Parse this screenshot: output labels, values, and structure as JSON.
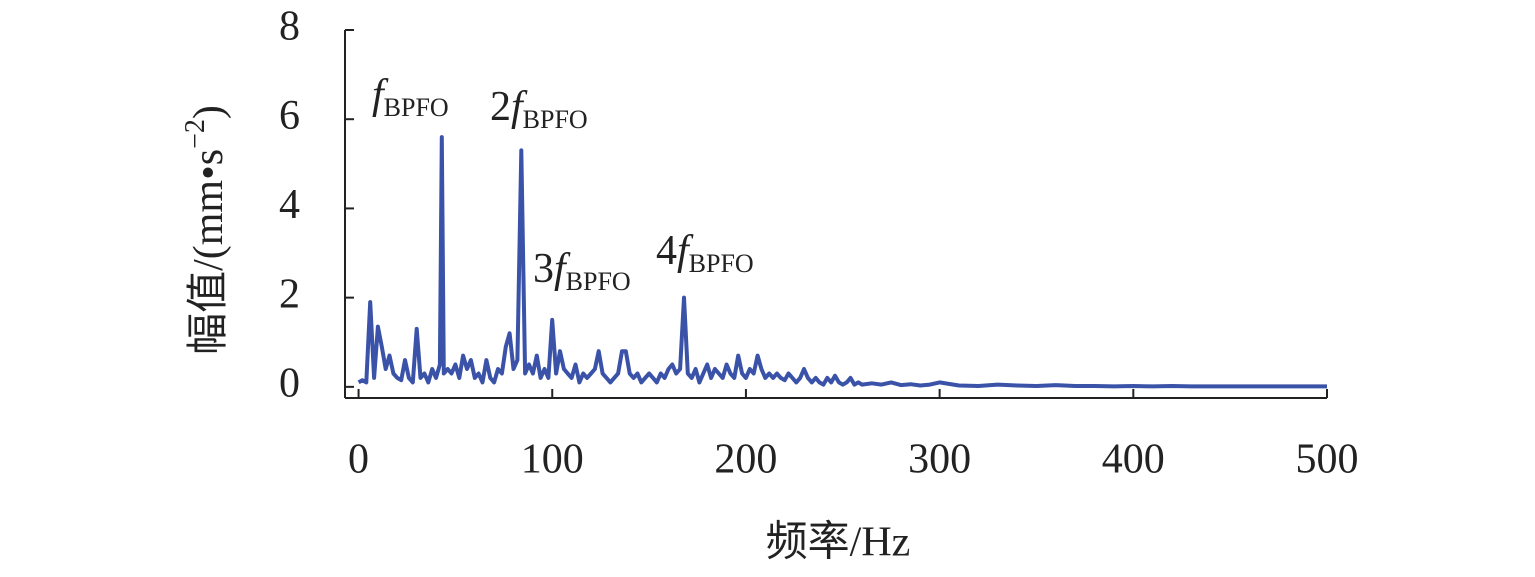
{
  "chart_data": {
    "type": "line",
    "x_label": "频率/Hz",
    "y_label_parts": [
      "幅值/(mm•s",
      "−2",
      ")"
    ],
    "x": [
      0,
      2,
      4,
      6,
      8,
      10,
      12,
      14,
      16,
      18,
      20,
      22,
      24,
      26,
      28,
      30,
      32,
      34,
      36,
      38,
      40,
      42,
      43,
      44,
      46,
      48,
      50,
      52,
      54,
      56,
      58,
      60,
      62,
      64,
      66,
      68,
      70,
      72,
      74,
      76,
      78,
      80,
      82,
      84,
      86,
      88,
      90,
      92,
      94,
      96,
      98,
      100,
      102,
      104,
      106,
      108,
      110,
      112,
      114,
      116,
      118,
      120,
      122,
      124,
      126,
      128,
      130,
      132,
      134,
      136,
      138,
      140,
      142,
      144,
      146,
      148,
      150,
      152,
      154,
      156,
      158,
      160,
      162,
      164,
      166,
      168,
      170,
      172,
      174,
      176,
      178,
      180,
      182,
      184,
      186,
      188,
      190,
      192,
      194,
      196,
      198,
      200,
      202,
      204,
      206,
      208,
      210,
      212,
      214,
      216,
      218,
      220,
      222,
      224,
      226,
      228,
      230,
      232,
      234,
      236,
      238,
      240,
      242,
      244,
      246,
      248,
      250,
      252,
      254,
      256,
      258,
      260,
      265,
      270,
      275,
      280,
      285,
      290,
      295,
      300,
      310,
      320,
      330,
      340,
      350,
      360,
      370,
      380,
      390,
      400,
      410,
      420,
      430,
      440,
      450,
      460,
      470,
      480,
      490,
      500
    ],
    "series": [
      {
        "color": "#3a52a8",
        "values": [
          0.1,
          0.15,
          0.1,
          1.9,
          0.2,
          1.35,
          0.9,
          0.4,
          0.7,
          0.3,
          0.2,
          0.15,
          0.6,
          0.2,
          0.1,
          1.3,
          0.2,
          0.3,
          0.1,
          0.4,
          0.2,
          0.5,
          5.6,
          0.3,
          0.4,
          0.3,
          0.5,
          0.2,
          0.7,
          0.4,
          0.6,
          0.2,
          0.3,
          0.1,
          0.6,
          0.2,
          0.1,
          0.4,
          0.3,
          0.9,
          1.2,
          0.4,
          0.6,
          5.3,
          0.3,
          0.5,
          0.3,
          0.7,
          0.2,
          0.4,
          0.2,
          1.5,
          0.3,
          0.8,
          0.4,
          0.3,
          0.2,
          0.5,
          0.1,
          0.3,
          0.2,
          0.3,
          0.4,
          0.8,
          0.3,
          0.2,
          0.1,
          0.2,
          0.3,
          0.8,
          0.8,
          0.3,
          0.2,
          0.3,
          0.1,
          0.2,
          0.3,
          0.2,
          0.1,
          0.3,
          0.2,
          0.4,
          0.5,
          0.3,
          0.4,
          2.0,
          0.3,
          0.2,
          0.4,
          0.1,
          0.3,
          0.5,
          0.2,
          0.4,
          0.3,
          0.2,
          0.5,
          0.3,
          0.2,
          0.7,
          0.3,
          0.2,
          0.4,
          0.3,
          0.7,
          0.4,
          0.2,
          0.3,
          0.2,
          0.3,
          0.2,
          0.15,
          0.3,
          0.2,
          0.1,
          0.2,
          0.4,
          0.2,
          0.1,
          0.2,
          0.1,
          0.05,
          0.2,
          0.1,
          0.25,
          0.1,
          0.05,
          0.1,
          0.2,
          0.05,
          0.1,
          0.05,
          0.08,
          0.05,
          0.1,
          0.04,
          0.06,
          0.03,
          0.05,
          0.1,
          0.03,
          0.02,
          0.05,
          0.03,
          0.02,
          0.04,
          0.02,
          0.02,
          0.01,
          0.02,
          0.01,
          0.02,
          0.01,
          0.01,
          0.01,
          0.01,
          0.01,
          0.01,
          0.01,
          0.01
        ]
      }
    ],
    "annotations": [
      {
        "symbol": "f",
        "subscript": "BPFO"
      },
      {
        "coefficient": "2",
        "symbol": "f",
        "subscript": "BPFO"
      },
      {
        "coefficient": "3",
        "symbol": "f",
        "subscript": "BPFO"
      },
      {
        "coefficient": "4",
        "symbol": "f",
        "subscript": "BPFO"
      }
    ],
    "xlim": [
      -7,
      500
    ],
    "ylim": [
      -0.25,
      8
    ],
    "xticks": [
      0,
      100,
      200,
      300,
      400,
      500
    ],
    "yticks": [
      0,
      2,
      4,
      6,
      8
    ]
  }
}
